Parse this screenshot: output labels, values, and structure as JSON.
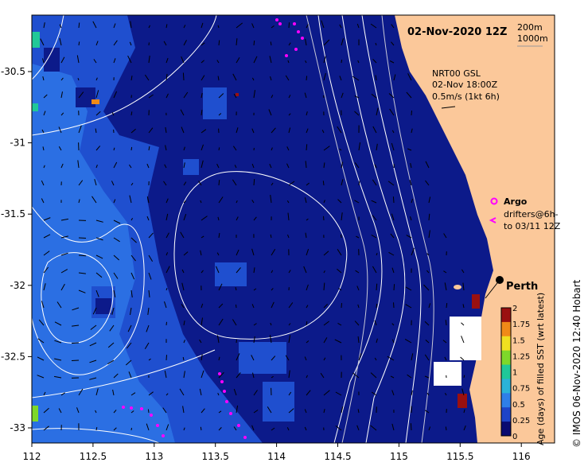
{
  "map": {
    "title": "02-Nov-2020 12Z",
    "bathymetry_legend": [
      "200m",
      "1000m"
    ],
    "current_info": {
      "model": "NRT00 GSL",
      "time": "02-Nov 18:00Z",
      "scale_label": "0.5m/s (1kt 6h)"
    },
    "argo_label": "Argo",
    "drifters_label": "drifters@6h-",
    "drifters_label2": "to 03/11 12Z",
    "city_label": "Perth",
    "credit": "© IMOS 06-Nov-2020 12:40 Hobart",
    "colorbar": {
      "label": "Age (days) of filled SST (wrt latest)",
      "ticks": [
        "2",
        "1.75",
        "1.5",
        "1.25",
        "1",
        "0.75",
        "0.5",
        "0.25",
        "0"
      ],
      "colors": [
        "#0a0a70",
        "#1e44c8",
        "#2f7fe8",
        "#2bb3d8",
        "#20c898",
        "#7ed82a",
        "#f0e020",
        "#f08a18",
        "#9a1010"
      ]
    },
    "x_axis": {
      "ticks": [
        "112",
        "112.5",
        "113",
        "113.5",
        "114",
        "114.5",
        "115",
        "115.5",
        "116"
      ]
    },
    "y_axis": {
      "ticks": [
        "-30.5",
        "-31",
        "-31.5",
        "-32",
        "-32.5",
        "-33"
      ]
    },
    "colors": {
      "ocean_deep": "#0c1a8a",
      "ocean_mid": "#1f4fcf",
      "ocean_light": "#2b6fe3",
      "land": "#fbc89a",
      "drifter": "#ff00ff",
      "contour": "#ffffff"
    }
  }
}
